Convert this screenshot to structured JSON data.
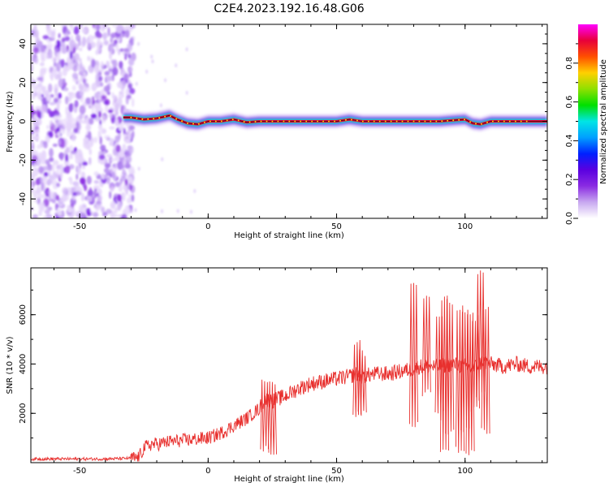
{
  "title": "C2E4.2023.192.16.48.G06",
  "colors": {
    "snr_line": "#e8302e",
    "colormap": [
      "#ffffff",
      "#c8a8f0",
      "#8a2be2",
      "#5a00e0",
      "#0020ff",
      "#00a0ff",
      "#00e5e5",
      "#00e000",
      "#90e000",
      "#ffd000",
      "#ff5000",
      "#e8003a",
      "#ff00ff"
    ]
  },
  "chart_data": [
    {
      "type": "heatmap",
      "xlabel": "Height of straight line (km)",
      "ylabel": "Frequency (Hz)",
      "xlim": [
        -69,
        132
      ],
      "ylim": [
        -50,
        50
      ],
      "x_ticks": [
        -50,
        0,
        50,
        100
      ],
      "y_ticks": [
        -40,
        -20,
        0,
        20,
        40
      ],
      "x_tick_labels": [
        "-50",
        "0",
        "50",
        "100"
      ],
      "y_tick_labels": [
        "-40",
        "-20",
        "0",
        "20",
        "40"
      ],
      "colorbar": {
        "label": "Normalized spectral amplitude",
        "range": [
          0,
          1
        ],
        "ticks": [
          0,
          0.2,
          0.4,
          0.6,
          0.8
        ],
        "tick_labels": [
          "0.0",
          "0.2",
          "0.4",
          "0.6",
          "0.8"
        ]
      },
      "noise_region": {
        "x_range": [
          -69,
          -29
        ],
        "y_range": [
          -50,
          50
        ]
      },
      "signal_line": {
        "x": [
          -33,
          -30,
          -25,
          -20,
          -15,
          -12,
          -8,
          -4,
          0,
          5,
          10,
          15,
          20,
          30,
          40,
          50,
          55,
          60,
          70,
          80,
          90,
          95,
          100,
          103,
          106,
          110,
          120,
          132
        ],
        "y": [
          2,
          2,
          1,
          1.5,
          3,
          1,
          -1,
          -1.5,
          0,
          0,
          1,
          -0.5,
          0,
          0,
          0,
          0,
          1,
          0,
          0,
          0,
          0,
          0.5,
          1,
          -1,
          -1.5,
          0,
          0,
          0
        ]
      }
    },
    {
      "type": "line",
      "xlabel": "Height of straight line (km)",
      "ylabel": "SNR (10 * v/v)",
      "xlim": [
        -69,
        132
      ],
      "ylim": [
        0,
        7900
      ],
      "x_ticks": [
        -50,
        0,
        50,
        100
      ],
      "y_ticks": [
        2000,
        4000,
        6000
      ],
      "x_tick_labels": [
        "-50",
        "0",
        "50",
        "100"
      ],
      "y_tick_labels": [
        "2000",
        "4000",
        "6000"
      ],
      "series": [
        {
          "x": [
            -69,
            -60,
            -50,
            -40,
            -30,
            -27,
            -25,
            -22,
            -20,
            -15,
            -10,
            -5,
            0,
            5,
            10,
            15,
            20,
            22,
            25,
            30,
            35,
            40,
            45,
            50,
            55,
            58,
            60,
            65,
            70,
            75,
            80,
            82,
            85,
            90,
            95,
            100,
            103,
            105,
            107,
            110,
            115,
            120,
            125,
            132
          ],
          "y": [
            150,
            150,
            150,
            150,
            180,
            200,
            600,
            750,
            750,
            850,
            900,
            950,
            1000,
            1200,
            1500,
            1800,
            2200,
            2600,
            2500,
            2700,
            3000,
            3200,
            3300,
            3400,
            3500,
            3600,
            3500,
            3600,
            3600,
            3700,
            3800,
            3900,
            3900,
            3900,
            4000,
            3900,
            3800,
            4000,
            4100,
            4000,
            3900,
            4000,
            3900,
            3900
          ]
        }
      ],
      "spikes": [
        {
          "x": 22,
          "low": 300,
          "high": 3400
        },
        {
          "x": 25,
          "low": 300,
          "high": 3300
        },
        {
          "x": 58,
          "low": 1800,
          "high": 5000
        },
        {
          "x": 60,
          "low": 1900,
          "high": 4600
        },
        {
          "x": 80,
          "low": 1400,
          "high": 7400
        },
        {
          "x": 85,
          "low": 2600,
          "high": 6800
        },
        {
          "x": 90,
          "low": 1700,
          "high": 6000
        },
        {
          "x": 92,
          "low": 400,
          "high": 6800
        },
        {
          "x": 94,
          "low": 1000,
          "high": 6700
        },
        {
          "x": 98,
          "low": 300,
          "high": 6400
        },
        {
          "x": 100,
          "low": 1200,
          "high": 6300
        },
        {
          "x": 102,
          "low": 300,
          "high": 6100
        },
        {
          "x": 104,
          "low": 2000,
          "high": 6000
        },
        {
          "x": 106,
          "low": 2500,
          "high": 7900
        },
        {
          "x": 108,
          "low": 1100,
          "high": 6400
        }
      ]
    }
  ]
}
